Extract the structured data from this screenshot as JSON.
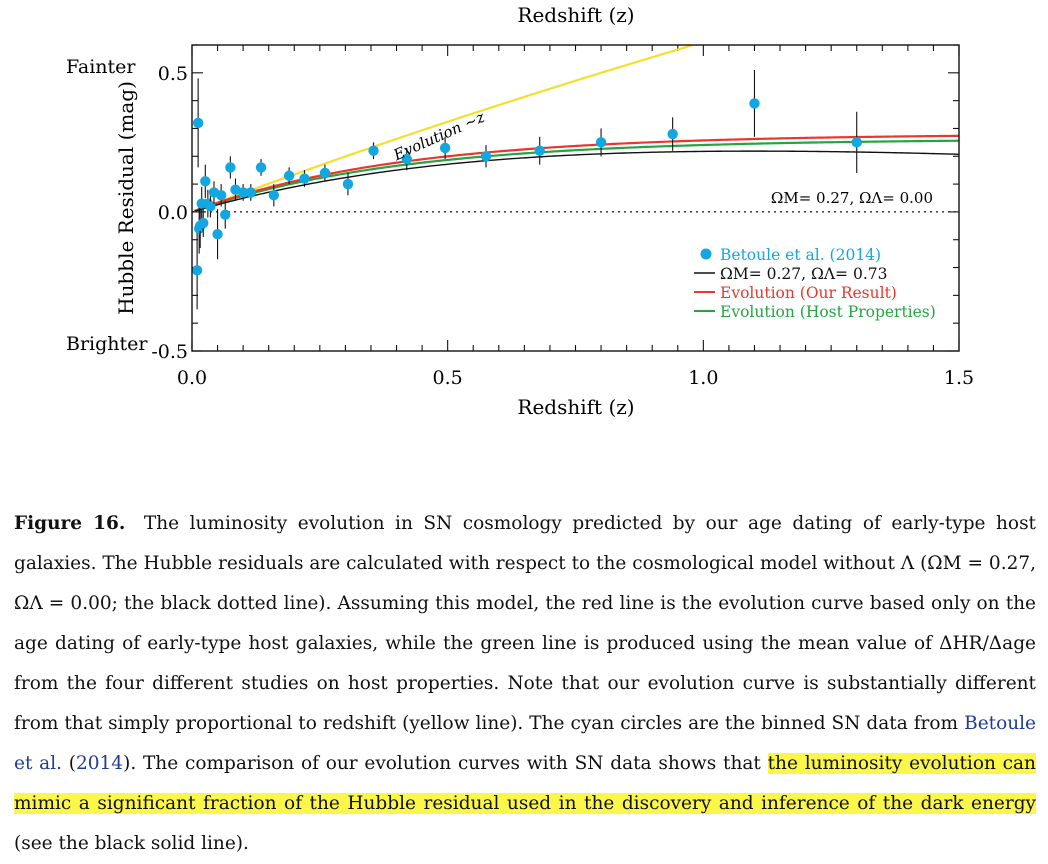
{
  "chart_data": {
    "type": "scatter",
    "xlabel": "Redshift (z)",
    "top_xlabel": "Redshift (z)",
    "ylabel": "Hubble Residual (mag)",
    "xlim": [
      0.0,
      1.5
    ],
    "ylim": [
      -0.5,
      0.6
    ],
    "xticks": [
      "0.0",
      "0.5",
      "1.0",
      "1.5"
    ],
    "yticks": [
      "0.5",
      "0.0",
      "-0.5"
    ],
    "y_side_labels": {
      "top": "Fainter",
      "bottom": "Brighter"
    },
    "legend_position": "lower-right",
    "series": [
      {
        "name": "Betoule et al. (2014)",
        "kind": "points-with-error-bars",
        "color": "#12a7e0",
        "x": [
          0.01,
          0.012,
          0.014,
          0.016,
          0.019,
          0.022,
          0.026,
          0.031,
          0.036,
          0.043,
          0.05,
          0.057,
          0.065,
          0.075,
          0.085,
          0.1,
          0.115,
          0.135,
          0.16,
          0.19,
          0.22,
          0.26,
          0.305,
          0.355,
          0.42,
          0.495,
          0.575,
          0.68,
          0.8,
          0.94,
          1.1,
          1.3
        ],
        "y": [
          -0.21,
          0.32,
          -0.06,
          -0.05,
          0.03,
          -0.04,
          0.11,
          0.03,
          0.02,
          0.07,
          -0.08,
          0.06,
          -0.01,
          0.16,
          0.08,
          0.07,
          0.07,
          0.16,
          0.06,
          0.13,
          0.12,
          0.14,
          0.1,
          0.22,
          0.19,
          0.23,
          0.2,
          0.22,
          0.25,
          0.28,
          0.39,
          0.25
        ],
        "err": [
          0.14,
          0.16,
          0.09,
          0.08,
          0.06,
          0.05,
          0.06,
          0.05,
          0.04,
          0.04,
          0.09,
          0.04,
          0.05,
          0.04,
          0.04,
          0.03,
          0.03,
          0.03,
          0.04,
          0.03,
          0.03,
          0.03,
          0.04,
          0.03,
          0.04,
          0.04,
          0.04,
          0.05,
          0.05,
          0.06,
          0.12,
          0.11
        ]
      },
      {
        "name": "ΩM= 0.27, ΩΛ= 0.73",
        "kind": "curve",
        "color": "#111111"
      },
      {
        "name": "Evolution (Our Result)",
        "kind": "curve",
        "color": "#e8372b"
      },
      {
        "name": "Evolution (Host Properties)",
        "kind": "curve",
        "color": "#22a542"
      },
      {
        "name": "",
        "kind": "curve",
        "color": "#f5df2e"
      }
    ],
    "annotations": {
      "evolution_label": "Evolution ~z",
      "baseline_label": "ΩM= 0.27,  ΩΛ= 0.00"
    }
  },
  "legend": {
    "betoule": "Betoule et al. (2014)",
    "lcdm": "ΩM= 0.27, ΩΛ= 0.73",
    "our": "Evolution (Our Result)",
    "host": "Evolution (Host Properties)"
  },
  "colors": {
    "cyan": "#12a7e0",
    "black": "#111111",
    "red": "#e8372b",
    "green": "#22a542",
    "yellow": "#f5df2e",
    "highlight": "#fbf64a",
    "citation": "#1f3b9a"
  },
  "caption": {
    "label": "Figure 16.",
    "part1": "The luminosity evolution in SN cosmology predicted by our age dating of early-type host galaxies. The Hubble residuals are calculated with respect to the cosmological model without Λ (ΩM = 0.27, ΩΛ = 0.00; the black dotted line). Assuming this model, the red line is the evolution curve based only on the age dating of early-type host galaxies, while the green line is produced using the mean value of ΔHR/Δage from the four different studies on host properties. Note that our evolution curve is substantially different from that simply proportional to redshift (yellow line). The cyan circles are the binned SN data from",
    "cite_author": "Betoule et al.",
    "cite_year": "2014",
    "part2": ". The comparison of our evolution curves with SN data shows that",
    "highlight": "the luminosity evolution can mimic a significant fraction of the Hubble residual used in the discovery and inference of the dark energy",
    "part3": "(see the black solid line)."
  }
}
